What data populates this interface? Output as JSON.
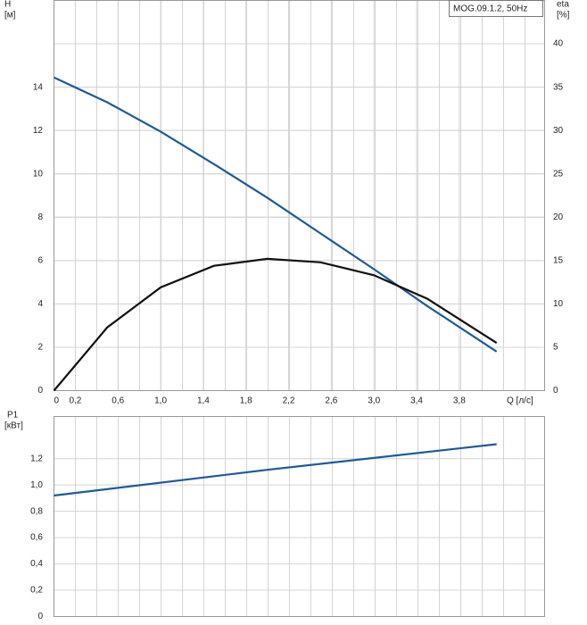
{
  "chart_data": [
    {
      "type": "line",
      "legend_title": "MOG.09.1.2, 50Hz",
      "y_label": "H",
      "y_unit": "[м]",
      "y2_label": "eta",
      "y2_unit": "[%]",
      "x_label": "Q [л/с]",
      "x": [
        0,
        0.5,
        1.0,
        1.5,
        2.0,
        2.5,
        3.0,
        3.5,
        4.15
      ],
      "xlim": [
        0,
        4.6
      ],
      "xticks": [
        0,
        {
          "value": 0.2,
          "label": "0,2"
        },
        {
          "value": 0.6,
          "label": "0,6"
        },
        {
          "value": 1.0,
          "label": "1,0"
        },
        {
          "value": 1.4,
          "label": "1,4"
        },
        {
          "value": 1.8,
          "label": "1,8"
        },
        {
          "value": 2.2,
          "label": "2,2"
        },
        {
          "value": 2.6,
          "label": "2,6"
        },
        {
          "value": 3.0,
          "label": "3,0"
        },
        {
          "value": 3.4,
          "label": "3,4"
        },
        {
          "value": 3.8,
          "label": "3,8"
        }
      ],
      "ylim": [
        0,
        18
      ],
      "yticks": [
        0,
        2,
        4,
        6,
        8,
        10,
        12,
        14
      ],
      "y2lim": [
        0,
        45
      ],
      "y2ticks": [
        0,
        5,
        10,
        15,
        20,
        25,
        30,
        35,
        40
      ],
      "grid": true,
      "series": [
        {
          "color": "#1f5a96",
          "values": [
            14.45,
            13.3,
            11.95,
            10.45,
            8.9,
            7.25,
            5.6,
            3.9,
            1.8
          ]
        },
        {
          "color": "#111111",
          "axis": "y2",
          "values": [
            0,
            7.3,
            11.9,
            14.4,
            15.2,
            14.8,
            13.3,
            10.6,
            5.5
          ]
        }
      ]
    },
    {
      "type": "line",
      "y_label": "P1",
      "y_unit": "[кВт]",
      "x": [
        0,
        2.0,
        4.15
      ],
      "xlim": [
        0,
        4.6
      ],
      "ylim": [
        0,
        1.5
      ],
      "yticks": [
        0,
        {
          "value": 0.2,
          "label": "0,2"
        },
        {
          "value": 0.4,
          "label": "0,4"
        },
        {
          "value": 0.6,
          "label": "0,6"
        },
        {
          "value": 0.8,
          "label": "0,8"
        },
        {
          "value": 1.0,
          "label": "1,0"
        },
        {
          "value": 1.2,
          "label": "1,2"
        }
      ],
      "grid": true,
      "series": [
        {
          "color": "#1f5a96",
          "values": [
            0.92,
            1.115,
            1.31
          ]
        }
      ]
    }
  ]
}
